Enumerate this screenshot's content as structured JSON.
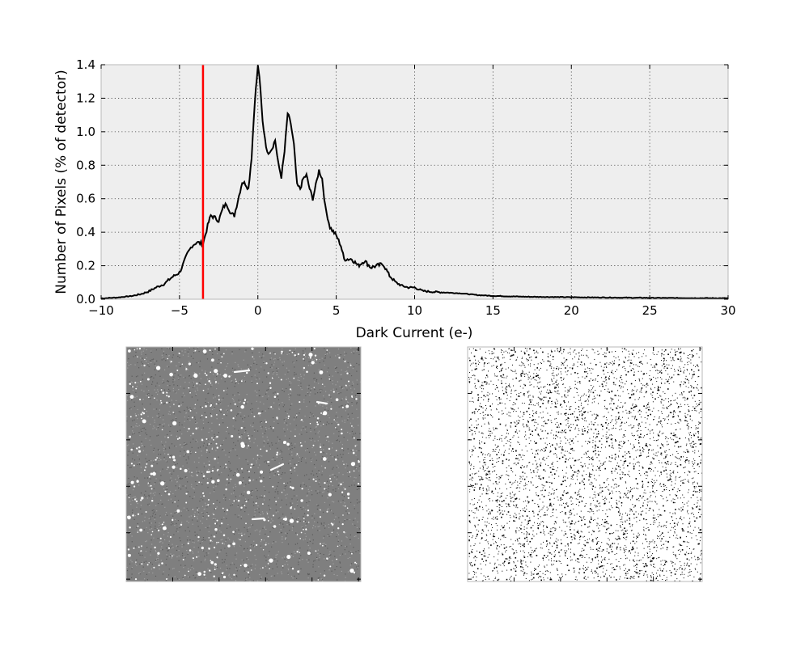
{
  "chart_data": [
    {
      "type": "line",
      "title": "",
      "xlabel": "Dark Current (e-)",
      "ylabel": "Number of Pixels (% of detector)",
      "xlim": [
        -10,
        30
      ],
      "ylim": [
        0,
        1.4
      ],
      "x_ticks": [
        -10,
        -5,
        0,
        5,
        10,
        15,
        20,
        25,
        30
      ],
      "x_tick_labels": [
        "−10",
        "−5",
        "0",
        "5",
        "10",
        "15",
        "20",
        "25",
        "30"
      ],
      "y_ticks": [
        0.0,
        0.2,
        0.4,
        0.6,
        0.8,
        1.0,
        1.2,
        1.4
      ],
      "y_tick_labels": [
        "0.0",
        "0.2",
        "0.4",
        "0.6",
        "0.8",
        "1.0",
        "1.2",
        "1.4"
      ],
      "grid": true,
      "background_color": "#eeeeee",
      "series": [
        {
          "color": "#000000",
          "points": [
            [
              -10,
              0.005
            ],
            [
              -9,
              0.01
            ],
            [
              -8,
              0.02
            ],
            [
              -7.5,
              0.03
            ],
            [
              -7,
              0.045
            ],
            [
              -6.5,
              0.07
            ],
            [
              -6,
              0.09
            ],
            [
              -5.5,
              0.13
            ],
            [
              -5,
              0.16
            ],
            [
              -4.8,
              0.2
            ],
            [
              -4.5,
              0.27
            ],
            [
              -4.2,
              0.32
            ],
            [
              -3.9,
              0.34
            ],
            [
              -3.5,
              0.33
            ],
            [
              -3.2,
              0.44
            ],
            [
              -3.0,
              0.5
            ],
            [
              -2.8,
              0.49
            ],
            [
              -2.5,
              0.47
            ],
            [
              -2.2,
              0.55
            ],
            [
              -2.0,
              0.57
            ],
            [
              -1.7,
              0.51
            ],
            [
              -1.5,
              0.5
            ],
            [
              -1.2,
              0.62
            ],
            [
              -1.0,
              0.7
            ],
            [
              -0.8,
              0.69
            ],
            [
              -0.6,
              0.66
            ],
            [
              -0.4,
              0.85
            ],
            [
              -0.2,
              1.18
            ],
            [
              0,
              1.39
            ],
            [
              0.1,
              1.33
            ],
            [
              0.3,
              1.06
            ],
            [
              0.6,
              0.87
            ],
            [
              0.9,
              0.9
            ],
            [
              1.1,
              0.95
            ],
            [
              1.3,
              0.81
            ],
            [
              1.5,
              0.73
            ],
            [
              1.7,
              0.88
            ],
            [
              1.9,
              1.11
            ],
            [
              2.1,
              1.05
            ],
            [
              2.3,
              0.92
            ],
            [
              2.5,
              0.68
            ],
            [
              2.7,
              0.66
            ],
            [
              2.9,
              0.72
            ],
            [
              3.1,
              0.74
            ],
            [
              3.3,
              0.66
            ],
            [
              3.5,
              0.6
            ],
            [
              3.7,
              0.68
            ],
            [
              3.9,
              0.77
            ],
            [
              4.1,
              0.72
            ],
            [
              4.3,
              0.55
            ],
            [
              4.6,
              0.43
            ],
            [
              5.0,
              0.38
            ],
            [
              5.3,
              0.32
            ],
            [
              5.5,
              0.24
            ],
            [
              6.0,
              0.24
            ],
            [
              6.4,
              0.2
            ],
            [
              6.8,
              0.23
            ],
            [
              7.2,
              0.19
            ],
            [
              7.6,
              0.2
            ],
            [
              8.0,
              0.21
            ],
            [
              8.4,
              0.14
            ],
            [
              8.8,
              0.1
            ],
            [
              9.2,
              0.08
            ],
            [
              9.6,
              0.07
            ],
            [
              10.0,
              0.07
            ],
            [
              10.5,
              0.05
            ],
            [
              11.0,
              0.045
            ],
            [
              12.0,
              0.04
            ],
            [
              13.0,
              0.035
            ],
            [
              14.0,
              0.025
            ],
            [
              15.0,
              0.02
            ],
            [
              17.0,
              0.015
            ],
            [
              20.0,
              0.012
            ],
            [
              25.0,
              0.008
            ],
            [
              30.0,
              0.006
            ]
          ]
        }
      ],
      "annotations": [
        {
          "type": "vline",
          "x": -3.5,
          "color": "#ff0000"
        }
      ]
    },
    {
      "type": "image",
      "description_colors": {
        "background": "#7f7f7f",
        "points": "#ffffff"
      }
    },
    {
      "type": "image",
      "description_colors": {
        "background": "#ffffff",
        "points": "#000000"
      }
    }
  ]
}
